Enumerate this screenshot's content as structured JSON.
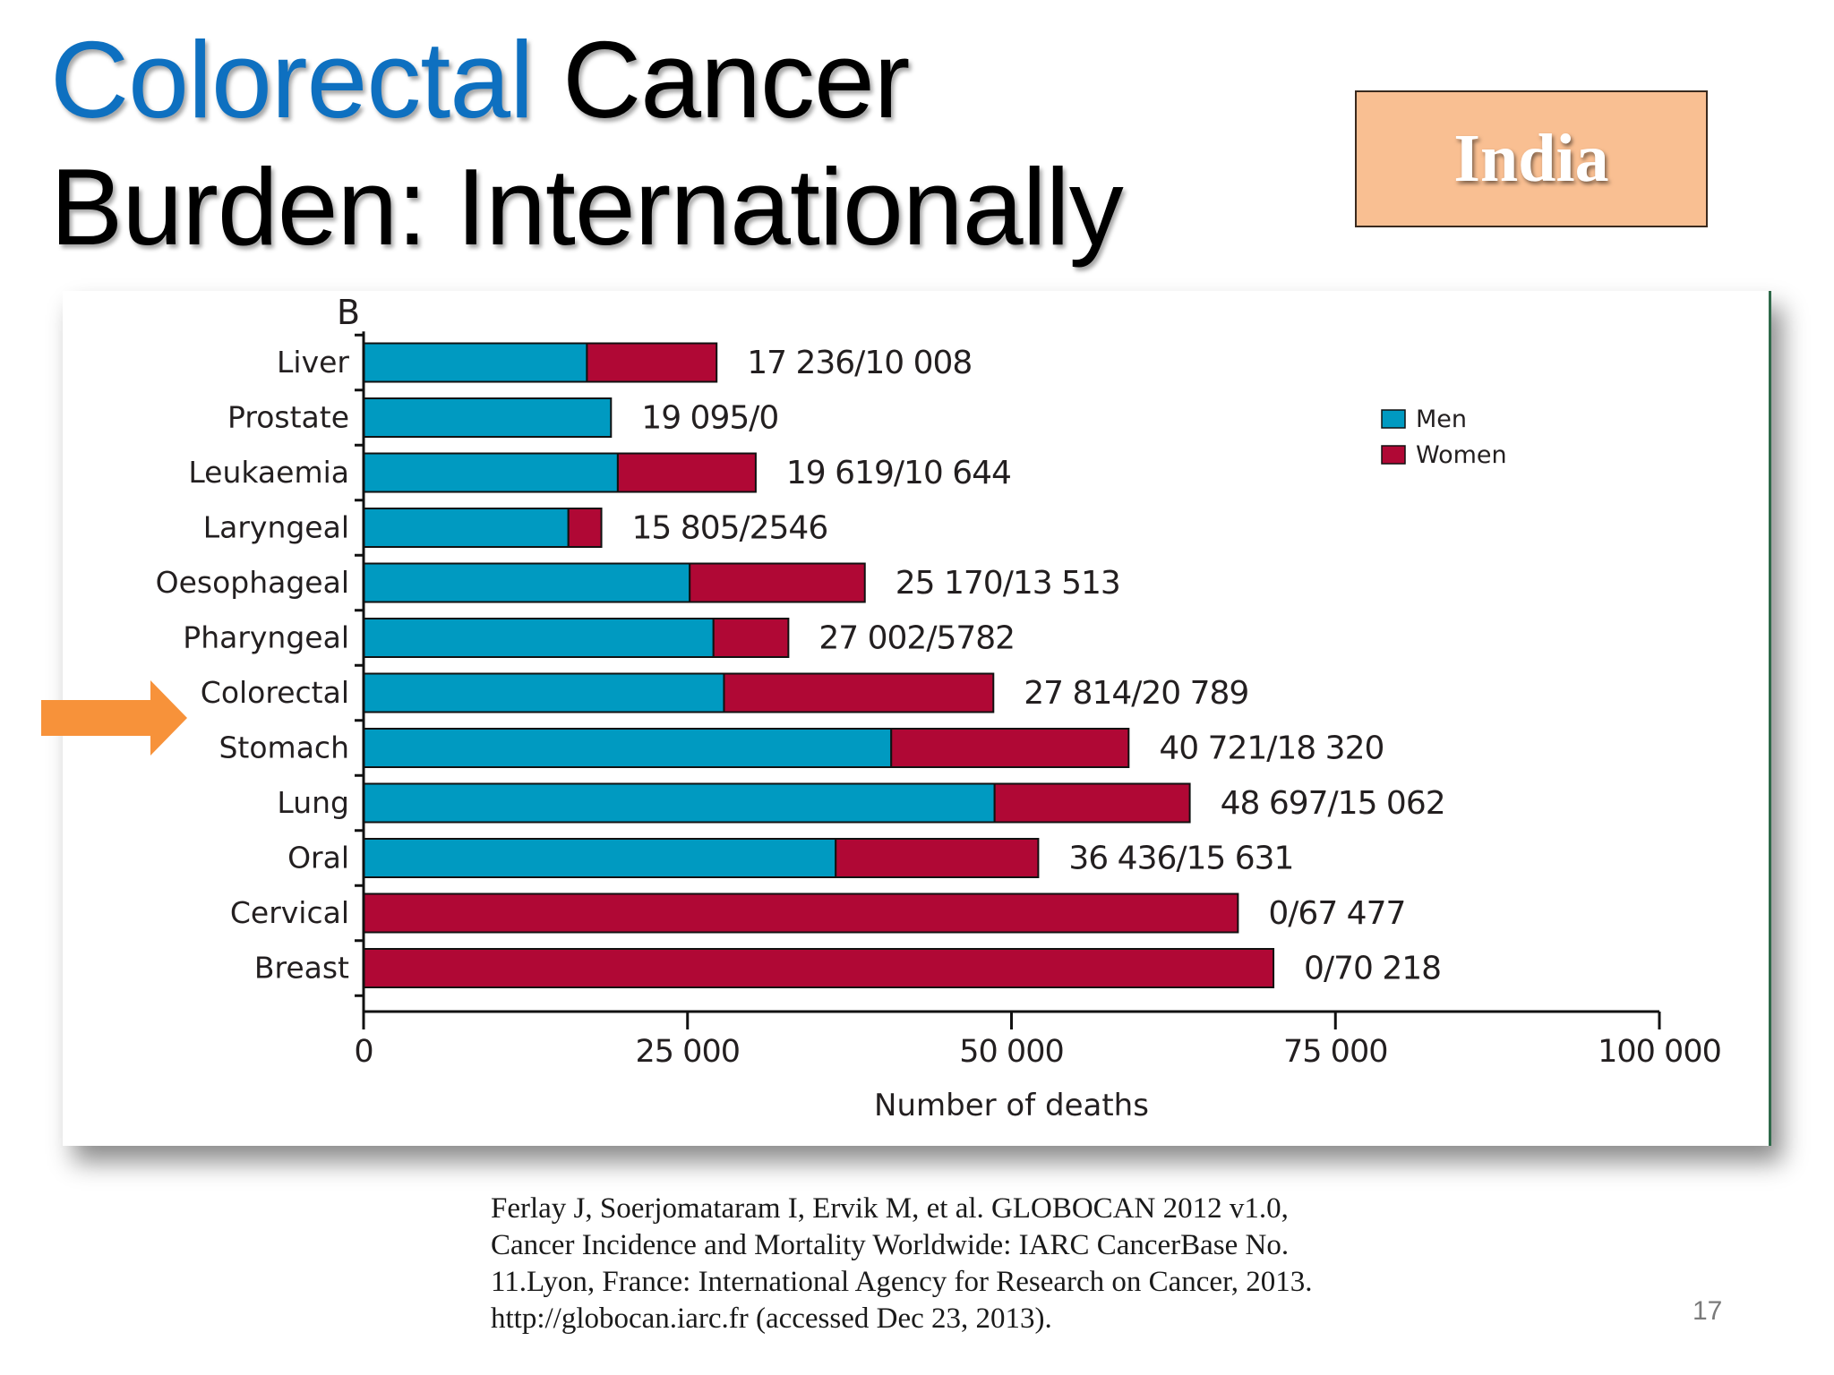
{
  "slide": {
    "title_accent": "Colorectal",
    "title_rest": " Cancer",
    "title_line2": "Burden: Internationally",
    "country": "India",
    "citation": "Ferlay J, Soerjomataram I, Ervik M, et al. GLOBOCAN 2012 v1.0,\nCancer Incidence and Mortality Worldwide: IARC CancerBase No.\n11.Lyon, France: International Agency for Research on Cancer, 2013.\nhttp://globocan.iarc.fr (accessed Dec 23, 2013).",
    "page_number": "17",
    "highlighted_category": "Colorectal"
  },
  "colors": {
    "title_accent": "#0e70c0",
    "country_box": "#f9bf92",
    "men": "#009ac1",
    "women": "#b00835",
    "arrow": "#f7923a"
  },
  "chart_data": {
    "type": "bar",
    "orientation": "horizontal",
    "stacked": true,
    "panel_label": "B",
    "categories": [
      "Liver",
      "Prostate",
      "Leukaemia",
      "Laryngeal",
      "Oesophageal",
      "Pharyngeal",
      "Colorectal",
      "Stomach",
      "Lung",
      "Oral",
      "Cervical",
      "Breast"
    ],
    "series": [
      {
        "name": "Men",
        "values": [
          17236,
          19095,
          19619,
          15805,
          25170,
          27002,
          27814,
          40721,
          48697,
          36436,
          0,
          0
        ]
      },
      {
        "name": "Women",
        "values": [
          10008,
          0,
          10644,
          2546,
          13513,
          5782,
          20789,
          18320,
          15062,
          15631,
          67477,
          70218
        ]
      }
    ],
    "data_labels": [
      "17 236/10 008",
      "19 095/0",
      "19 619/10 644",
      "15 805/2546",
      "25 170/13 513",
      "27 002/5782",
      "27 814/20 789",
      "40 721/18 320",
      "48 697/15 062",
      "36 436/15 631",
      "0/67 477",
      "0/70 218"
    ],
    "xlabel": "Number of deaths",
    "ylabel": "",
    "xlim": [
      0,
      100000
    ],
    "xticks": [
      0,
      25000,
      50000,
      75000,
      100000
    ],
    "xtick_labels": [
      "0",
      "25 000",
      "50 000",
      "75 000",
      "100 000"
    ],
    "legend": {
      "position": "top-right",
      "entries": [
        "Men",
        "Women"
      ]
    },
    "grid": false
  }
}
